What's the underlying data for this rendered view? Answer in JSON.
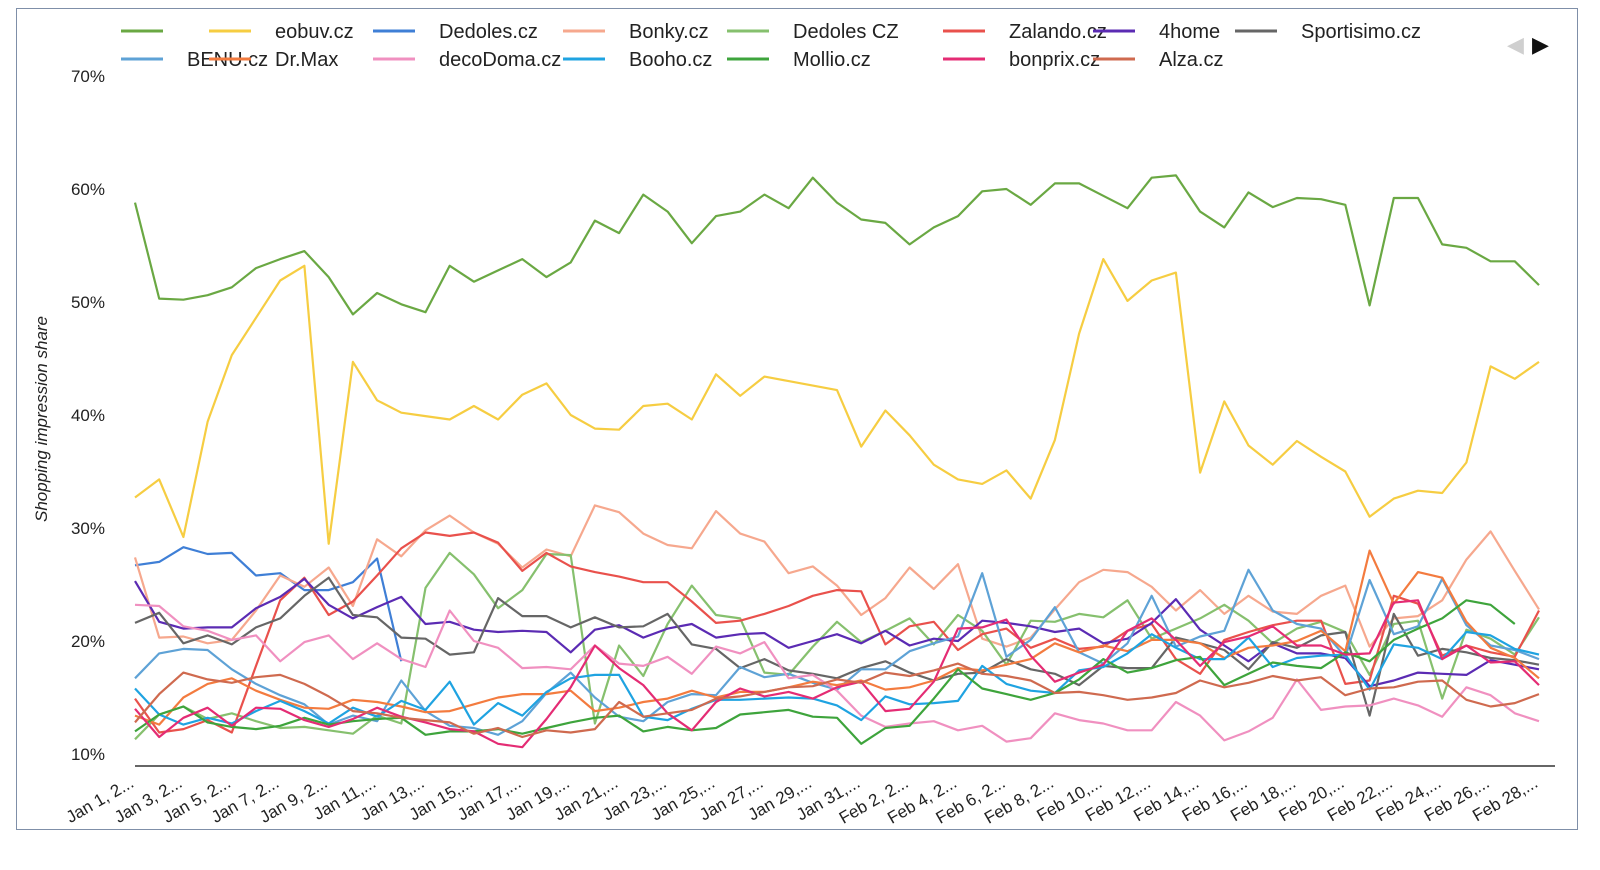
{
  "chart_data": {
    "type": "line",
    "title": "",
    "xlabel": "",
    "ylabel": "Shopping impression share",
    "ylim": [
      10,
      70
    ],
    "yticks": [
      "10%",
      "20%",
      "30%",
      "40%",
      "50%",
      "60%",
      "70%"
    ],
    "xtick_labels": [
      "Jan 1, 2...",
      "Jan 3, 2...",
      "Jan 5, 2...",
      "Jan 7, 2...",
      "Jan 9, 2...",
      "Jan 11,...",
      "Jan 13,...",
      "Jan 15,...",
      "Jan 17,...",
      "Jan 19,...",
      "Jan 21,...",
      "Jan 23,...",
      "Jan 25,...",
      "Jan 27,...",
      "Jan 29,...",
      "Jan 31,...",
      "Feb 2, 2...",
      "Feb 4, 2...",
      "Feb 6, 2...",
      "Feb 8, 2...",
      "Feb 10,...",
      "Feb 12,...",
      "Feb 14,...",
      "Feb 16,...",
      "Feb 18,...",
      "Feb 20,...",
      "Feb 22,...",
      "Feb 24,...",
      "Feb 26,...",
      "Feb 28,..."
    ],
    "num_points": 59,
    "legend_nav": {
      "prev": "◀",
      "next": "▶"
    },
    "series": [
      {
        "name": "",
        "color": "#6aa843",
        "values": [
          58.8,
          50.3,
          50.2,
          50.6,
          51.3,
          53.0,
          53.8,
          54.5,
          52.2,
          48.9,
          50.8,
          49.8,
          49.1,
          53.2,
          51.8,
          52.8,
          53.8,
          52.2,
          53.5,
          57.2,
          56.1,
          59.5,
          58.0,
          55.2,
          57.6,
          58.0,
          59.5,
          58.3,
          61.0,
          58.8,
          57.3,
          57.0,
          55.1,
          56.6,
          57.6,
          59.8,
          60.0,
          58.6,
          60.5,
          60.5,
          59.4,
          58.3,
          61.0,
          61.2,
          58.0,
          56.6,
          59.7,
          58.4,
          59.2,
          59.1,
          58.6,
          49.7,
          59.2,
          59.2,
          55.1,
          54.8,
          53.6,
          53.6,
          51.5
        ]
      },
      {
        "name": "eobuv.cz",
        "color": "#f6cd42",
        "values": [
          32.7,
          34.3,
          29.2,
          39.4,
          45.3,
          48.6,
          51.9,
          53.2,
          28.6,
          44.7,
          41.3,
          40.2,
          39.9,
          39.6,
          40.8,
          39.6,
          41.8,
          42.8,
          40.0,
          38.8,
          38.7,
          40.8,
          41.0,
          39.6,
          43.6,
          41.7,
          43.4,
          43.0,
          42.6,
          42.2,
          37.2,
          40.4,
          38.2,
          35.6,
          34.3,
          33.9,
          35.1,
          32.6,
          37.8,
          47.2,
          53.8,
          50.1,
          51.9,
          52.6,
          34.9,
          41.2,
          37.3,
          35.6,
          37.7,
          36.3,
          35.0,
          31.0,
          32.6,
          33.3,
          33.1,
          35.8,
          44.3,
          43.2,
          44.7
        ]
      },
      {
        "name": "Dedoles.cz",
        "color": "#3f7fd6",
        "values": [
          26.7,
          27.0,
          28.3,
          27.7,
          27.8,
          25.8,
          26.0,
          24.5,
          24.5,
          25.2,
          27.3,
          18.2,
          null,
          null,
          null,
          null,
          null,
          null,
          null,
          null,
          null,
          null,
          null,
          null,
          null,
          null,
          null,
          null,
          null,
          null,
          null,
          null,
          null,
          null,
          null,
          null,
          null,
          null,
          null,
          null,
          null,
          null,
          null,
          null,
          null,
          null,
          null,
          null,
          null,
          null,
          null,
          null,
          null,
          null,
          null,
          null,
          null,
          null,
          null
        ]
      },
      {
        "name": "Bonky.cz",
        "color": "#f6a88e",
        "values": [
          27.4,
          20.3,
          20.4,
          19.8,
          20.1,
          22.7,
          25.8,
          24.8,
          26.5,
          23.1,
          29.0,
          27.5,
          29.8,
          31.1,
          29.6,
          28.6,
          26.5,
          28.1,
          27.5,
          32.0,
          31.4,
          29.5,
          28.5,
          28.2,
          31.5,
          29.5,
          28.8,
          26.0,
          26.6,
          24.9,
          22.3,
          23.8,
          26.5,
          24.6,
          26.8,
          20.2,
          19.5,
          20.3,
          22.8,
          25.2,
          26.3,
          26.1,
          24.8,
          22.7,
          24.5,
          22.4,
          24.0,
          22.6,
          22.4,
          24.0,
          24.9,
          19.5,
          22.0,
          22.2,
          23.6,
          27.2,
          29.7,
          26.2,
          22.8
        ]
      },
      {
        "name": "Dedoles CZ",
        "color": "#86c06e",
        "values": [
          11.3,
          13.5,
          14.2,
          13.1,
          13.6,
          12.9,
          12.3,
          12.4,
          12.1,
          11.8,
          13.4,
          12.7,
          24.7,
          27.8,
          25.9,
          22.9,
          24.5,
          27.7,
          27.6,
          12.7,
          19.6,
          16.9,
          21.5,
          24.9,
          22.3,
          22.0,
          17.2,
          17.0,
          19.5,
          21.7,
          19.9,
          20.9,
          22.0,
          19.7,
          22.3,
          20.9,
          17.9,
          21.8,
          21.7,
          22.4,
          22.1,
          23.6,
          20.2,
          21.1,
          22.0,
          23.2,
          21.8,
          19.8,
          21.1,
          21.7,
          20.8,
          17.0,
          21.5,
          21.8,
          14.9,
          21.0,
          20.2,
          18.8,
          22.1
        ]
      },
      {
        "name": "Zalando.cz",
        "color": "#e9514c",
        "values": [
          14.9,
          11.9,
          12.2,
          13.0,
          11.9,
          17.8,
          23.6,
          25.6,
          22.3,
          23.5,
          25.8,
          28.2,
          29.6,
          29.3,
          29.6,
          28.7,
          26.2,
          27.8,
          26.6,
          26.1,
          25.7,
          25.2,
          25.2,
          23.5,
          21.6,
          21.8,
          22.4,
          23.1,
          24.0,
          24.5,
          24.4,
          19.7,
          21.3,
          21.7,
          19.2,
          20.6,
          21.1,
          19.4,
          20.2,
          19.3,
          19.5,
          20.9,
          21.5,
          18.4,
          17.1,
          20.1,
          20.8,
          21.4,
          21.8,
          21.8,
          16.2,
          16.5,
          24.0,
          23.3,
          18.7,
          19.6,
          19.0,
          18.6,
          22.7
        ]
      },
      {
        "name": "4home",
        "color": "#5b2bb3",
        "values": [
          25.3,
          21.7,
          21.1,
          21.2,
          21.2,
          22.9,
          23.9,
          25.5,
          23.2,
          22.0,
          23.0,
          23.9,
          21.5,
          21.7,
          21.0,
          20.8,
          20.9,
          20.8,
          19.0,
          21.0,
          21.4,
          20.3,
          21.1,
          21.5,
          20.3,
          20.6,
          20.7,
          19.4,
          20.0,
          20.6,
          19.8,
          20.9,
          19.6,
          20.2,
          20.0,
          21.8,
          21.6,
          21.3,
          20.8,
          21.1,
          19.8,
          20.2,
          21.6,
          23.7,
          21.0,
          19.6,
          18.2,
          19.8,
          18.9,
          18.9,
          18.5,
          16.0,
          16.5,
          17.2,
          17.1,
          17.0,
          18.3,
          17.9,
          17.5
        ]
      },
      {
        "name": "Sportisimo.cz",
        "color": "#666666",
        "values": [
          21.6,
          22.5,
          19.8,
          20.5,
          19.7,
          21.2,
          22.0,
          24.0,
          25.6,
          22.3,
          22.1,
          20.3,
          20.2,
          18.8,
          19.0,
          23.8,
          22.2,
          22.2,
          21.2,
          22.1,
          21.2,
          21.3,
          22.4,
          19.7,
          19.3,
          17.6,
          18.4,
          17.4,
          17.1,
          16.7,
          17.6,
          18.2,
          17.2,
          16.5,
          17.1,
          17.2,
          18.4,
          17.5,
          17.1,
          16.1,
          17.8,
          17.6,
          17.6,
          20.3,
          19.8,
          19.2,
          17.5,
          19.9,
          19.4,
          20.5,
          20.8,
          13.4,
          22.4,
          18.7,
          19.3,
          19.0,
          18.5,
          18.3,
          17.9
        ]
      },
      {
        "name": "BENU.cz",
        "color": "#5ea2d6",
        "values": [
          16.7,
          18.9,
          19.3,
          19.2,
          17.5,
          16.2,
          15.2,
          14.4,
          12.6,
          13.4,
          12.9,
          16.5,
          13.8,
          12.5,
          12.3,
          11.7,
          12.9,
          15.4,
          17.2,
          15.0,
          13.3,
          12.9,
          14.6,
          15.3,
          15.2,
          17.7,
          16.8,
          17.1,
          16.3,
          15.7,
          17.5,
          17.5,
          19.1,
          19.8,
          20.4,
          26.0,
          18.6,
          20.1,
          23.0,
          19.0,
          18.0,
          19.8,
          24.0,
          19.5,
          20.4,
          20.9,
          26.3,
          22.7,
          21.5,
          21.1,
          18.6,
          25.4,
          20.6,
          21.3,
          25.5,
          21.4,
          19.6,
          19.2,
          18.4
        ]
      },
      {
        "name": "Dr.Max",
        "color": "#f37b3f",
        "values": [
          13.4,
          12.6,
          15.0,
          16.2,
          16.7,
          15.6,
          14.8,
          14.1,
          14.0,
          14.8,
          14.6,
          14.2,
          13.7,
          13.8,
          14.4,
          15.0,
          15.3,
          15.3,
          15.6,
          13.8,
          14.1,
          14.6,
          14.9,
          15.6,
          15.0,
          15.5,
          15.5,
          15.9,
          16.4,
          16.1,
          16.5,
          15.7,
          15.9,
          16.5,
          17.6,
          17.4,
          17.9,
          18.4,
          19.8,
          19.0,
          19.6,
          19.1,
          20.1,
          20.1,
          19.8,
          18.5,
          19.4,
          19.6,
          20.0,
          20.9,
          19.1,
          28.0,
          23.3,
          26.1,
          25.6,
          21.7,
          19.4,
          18.5,
          16.7
        ]
      },
      {
        "name": "decoDoma.cz",
        "color": "#f090c0",
        "values": [
          23.2,
          23.1,
          21.3,
          20.9,
          20.1,
          20.5,
          18.2,
          19.9,
          20.5,
          18.4,
          19.8,
          18.4,
          17.7,
          22.7,
          20.0,
          19.4,
          17.6,
          17.7,
          17.5,
          19.6,
          18.0,
          17.8,
          18.6,
          17.1,
          19.5,
          18.9,
          19.9,
          16.7,
          17.0,
          15.6,
          13.4,
          12.4,
          12.7,
          12.9,
          12.1,
          12.5,
          11.1,
          11.4,
          13.6,
          13.0,
          12.7,
          12.1,
          12.1,
          14.6,
          13.4,
          11.2,
          12.0,
          13.2,
          16.6,
          13.9,
          14.2,
          14.3,
          14.9,
          14.3,
          13.3,
          15.9,
          15.2,
          13.6,
          12.9
        ]
      },
      {
        "name": "Booho.cz",
        "color": "#1fa3e1",
        "values": [
          15.8,
          13.5,
          12.6,
          13.2,
          12.7,
          13.8,
          14.7,
          13.8,
          12.7,
          14.1,
          13.3,
          14.7,
          13.9,
          16.4,
          12.6,
          14.5,
          13.4,
          15.5,
          16.7,
          17.0,
          17.0,
          13.3,
          13.0,
          14.0,
          14.8,
          14.8,
          14.9,
          15.0,
          14.9,
          14.3,
          13.0,
          15.1,
          14.4,
          14.5,
          14.7,
          17.8,
          16.2,
          15.6,
          15.4,
          17.4,
          17.7,
          18.9,
          20.6,
          19.4,
          18.4,
          18.4,
          20.3,
          17.7,
          18.5,
          18.7,
          18.8,
          15.7,
          19.7,
          19.4,
          18.4,
          20.8,
          20.5,
          19.3,
          18.8
        ]
      },
      {
        "name": "Mollio.cz",
        "color": "#3ea43c",
        "values": [
          12.0,
          13.5,
          14.2,
          12.8,
          12.4,
          12.2,
          12.5,
          13.2,
          12.6,
          12.9,
          13.1,
          13.2,
          11.7,
          12.0,
          12.0,
          12.2,
          11.8,
          12.3,
          12.8,
          13.2,
          13.4,
          12.0,
          12.4,
          12.1,
          12.3,
          13.5,
          13.7,
          13.9,
          13.3,
          13.2,
          10.9,
          12.3,
          12.5,
          14.9,
          17.5,
          15.8,
          15.3,
          14.8,
          15.4,
          16.6,
          18.4,
          17.2,
          17.6,
          18.3,
          18.6,
          16.1,
          17.1,
          18.1,
          17.8,
          17.6,
          19.0,
          18.2,
          20.1,
          21.1,
          22.0,
          23.6,
          23.2,
          21.5,
          null
        ]
      },
      {
        "name": "bonprix.cz",
        "color": "#e42c74",
        "values": [
          14.0,
          11.5,
          13.2,
          14.1,
          12.5,
          14.1,
          14.0,
          13.0,
          12.4,
          13.1,
          14.1,
          13.3,
          12.8,
          12.2,
          12.0,
          10.9,
          10.6,
          13.1,
          15.9,
          19.6,
          17.6,
          16.1,
          13.6,
          12.1,
          14.6,
          15.8,
          15.1,
          15.5,
          14.9,
          15.9,
          16.4,
          13.8,
          14.0,
          16.4,
          21.1,
          21.2,
          21.9,
          18.7,
          16.4,
          17.2,
          17.9,
          20.9,
          22.0,
          20.1,
          17.8,
          19.9,
          20.4,
          21.3,
          19.6,
          19.6,
          18.8,
          18.9,
          23.4,
          23.6,
          18.4,
          19.6,
          18.1,
          18.2,
          16.1
        ]
      },
      {
        "name": "Alza.cz",
        "color": "#cf6a4f",
        "values": [
          12.8,
          15.3,
          17.2,
          16.6,
          16.3,
          16.8,
          17.0,
          16.2,
          15.1,
          13.8,
          13.6,
          13.2,
          13.0,
          12.8,
          11.8,
          12.3,
          11.5,
          12.1,
          11.9,
          12.2,
          14.6,
          13.3,
          13.6,
          13.9,
          14.9,
          15.1,
          15.5,
          15.9,
          16.0,
          16.6,
          16.3,
          17.2,
          16.9,
          17.4,
          18.0,
          17.1,
          16.9,
          16.5,
          15.4,
          15.5,
          15.2,
          14.8,
          15.0,
          15.4,
          16.5,
          15.9,
          16.3,
          16.9,
          16.5,
          16.8,
          15.2,
          15.8,
          15.9,
          16.4,
          16.5,
          14.8,
          14.2,
          14.5,
          15.3
        ]
      }
    ]
  }
}
